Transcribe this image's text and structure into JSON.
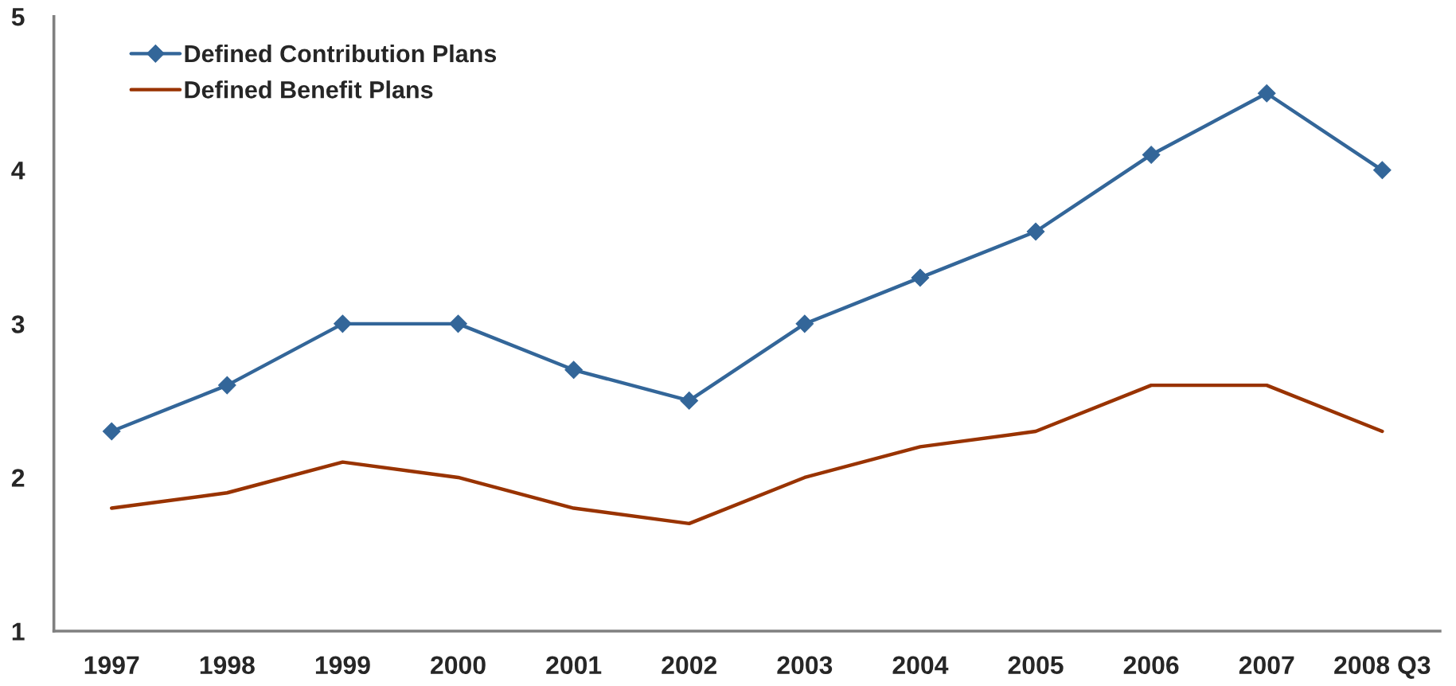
{
  "chart_data": {
    "type": "line",
    "categories": [
      "1997",
      "1998",
      "1999",
      "2000",
      "2001",
      "2002",
      "2003",
      "2004",
      "2005",
      "2006",
      "2007",
      "2008 Q3"
    ],
    "series": [
      {
        "name": "Defined Contribution Plans",
        "color": "#336699",
        "marker": "diamond",
        "values": [
          2.3,
          2.6,
          3.0,
          3.0,
          2.7,
          2.5,
          3.0,
          3.3,
          3.6,
          4.1,
          4.5,
          4.0
        ]
      },
      {
        "name": "Defined Benefit Plans",
        "color": "#993300",
        "marker": "none",
        "values": [
          1.8,
          1.9,
          2.1,
          2.0,
          1.8,
          1.7,
          2.0,
          2.2,
          2.3,
          2.6,
          2.6,
          2.3
        ]
      }
    ],
    "ylim": [
      1,
      5
    ],
    "yticks": [
      1,
      2,
      3,
      4,
      5
    ],
    "legend": "top left",
    "grid": false
  }
}
